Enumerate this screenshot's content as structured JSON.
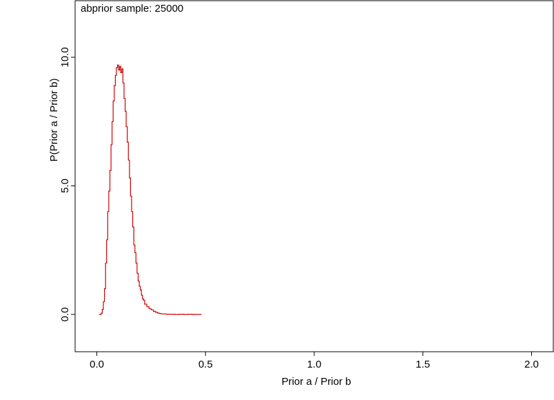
{
  "chart_data": {
    "type": "line",
    "title": "abprior sample: 25000",
    "xlabel": "Prior a / Prior b",
    "ylabel": "P(Prior a / Prior b)",
    "xlim": [
      -0.1,
      2.1
    ],
    "ylim": [
      -1.45,
      12.2
    ],
    "x_ticks": [
      0.0,
      0.5,
      1.0,
      1.5,
      2.0
    ],
    "x_tick_labels": [
      "0.0",
      "0.5",
      "1.0",
      "1.5",
      "2.0"
    ],
    "y_ticks": [
      0.0,
      5.0,
      10.0
    ],
    "y_tick_labels": [
      "0.0",
      "5.0",
      "10.0"
    ],
    "grid": false,
    "series": [
      {
        "color": "#cc0000",
        "x": [
          0.01,
          0.02,
          0.025,
          0.03,
          0.035,
          0.04,
          0.045,
          0.05,
          0.055,
          0.06,
          0.065,
          0.07,
          0.075,
          0.08,
          0.085,
          0.09,
          0.095,
          0.1,
          0.105,
          0.11,
          0.115,
          0.12,
          0.125,
          0.13,
          0.135,
          0.14,
          0.145,
          0.15,
          0.155,
          0.16,
          0.165,
          0.17,
          0.175,
          0.18,
          0.185,
          0.19,
          0.195,
          0.2,
          0.205,
          0.21,
          0.215,
          0.22,
          0.23,
          0.24,
          0.25,
          0.26,
          0.27,
          0.28,
          0.29,
          0.3,
          0.32,
          0.34,
          0.36,
          0.38,
          0.4,
          0.42,
          0.44,
          0.46,
          0.48
        ],
        "y": [
          0.0,
          0.05,
          0.2,
          0.5,
          1.0,
          2.0,
          2.9,
          4.0,
          4.8,
          5.6,
          6.6,
          7.5,
          8.3,
          8.9,
          9.3,
          9.6,
          9.7,
          9.5,
          9.65,
          9.4,
          9.55,
          9.0,
          8.4,
          7.9,
          7.3,
          6.7,
          6.0,
          5.3,
          4.6,
          4.0,
          3.4,
          2.7,
          2.4,
          2.0,
          1.6,
          1.3,
          1.1,
          0.95,
          0.75,
          0.6,
          0.55,
          0.4,
          0.3,
          0.22,
          0.18,
          0.12,
          0.08,
          0.05,
          0.03,
          0.02,
          0.01,
          0.01,
          0.0,
          0.01,
          0.0,
          0.01,
          0.0,
          0.0,
          0.01
        ]
      }
    ]
  }
}
